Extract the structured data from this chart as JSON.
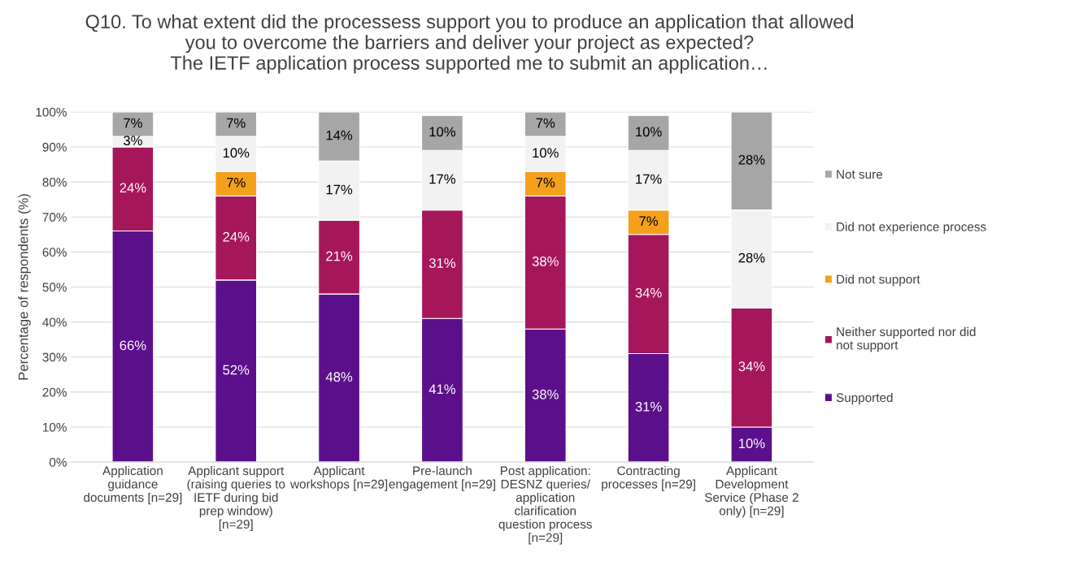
{
  "chart_data": {
    "type": "bar",
    "stacked": true,
    "title": "Q10. To what extent did the processess support you to produce an application that allowed\nyou to overcome the barriers and deliver your project as expected?\nThe IETF application process supported me to submit an application…",
    "ylabel": "Percentage of respondents (%)",
    "categories": [
      "Application\nguidance\ndocuments [n=29]",
      "Applicant support\n(raising queries to\nIETF during bid\nprep window)\n[n=29]",
      "Applicant\nworkshops [n=29]",
      "Pre-launch\nengagement [n=29]",
      "Post application:\nDESNZ queries/\napplication\nclarification\nquestion process\n[n=29]",
      "Contracting\nprocesses [n=29]",
      "Applicant\nDevelopment\nService (Phase 2\nonly) [n=29]"
    ],
    "series": [
      {
        "name": "Supported",
        "color": "#5c0f8b",
        "values": [
          66,
          52,
          48,
          41,
          38,
          31,
          10
        ],
        "value_labels": [
          "66%",
          "52%",
          "48%",
          "41%",
          "38%",
          "31%",
          "10%"
        ]
      },
      {
        "name": "Neither supported nor did\nnot support",
        "color": "#a6165a",
        "values": [
          24,
          24,
          21,
          31,
          38,
          34,
          34
        ],
        "value_labels": [
          "24%",
          "24%",
          "21%",
          "31%",
          "38%",
          "34%",
          "34%"
        ]
      },
      {
        "name": "Did not support",
        "color": "#f5a01a",
        "values": [
          null,
          7,
          null,
          null,
          7,
          7,
          null
        ],
        "value_labels": [
          null,
          "7%",
          null,
          null,
          "7%",
          "7%",
          null
        ]
      },
      {
        "name": "Did not experience process",
        "color": "#f2f2f2",
        "values": [
          3,
          10,
          17,
          17,
          10,
          17,
          28
        ],
        "value_labels": [
          "3%",
          "10%",
          "17%",
          "17%",
          "10%",
          "17%",
          "28%"
        ]
      },
      {
        "name": "Not sure",
        "color": "#a6a6a6",
        "values": [
          7,
          7,
          14,
          10,
          7,
          10,
          28
        ],
        "value_labels": [
          "7%",
          "7%",
          "14%",
          "10%",
          "7%",
          "10%",
          "28%"
        ]
      }
    ],
    "ylim": [
      0,
      100
    ],
    "yticks": [
      {
        "value": 0,
        "label": "0%"
      },
      {
        "value": 10,
        "label": "10%"
      },
      {
        "value": 20,
        "label": "20%"
      },
      {
        "value": 30,
        "label": "30%"
      },
      {
        "value": 40,
        "label": "40%"
      },
      {
        "value": 50,
        "label": "50%"
      },
      {
        "value": 60,
        "label": "60%"
      },
      {
        "value": 70,
        "label": "70%"
      },
      {
        "value": 80,
        "label": "80%"
      },
      {
        "value": 90,
        "label": "90%"
      },
      {
        "value": 100,
        "label": "100%"
      }
    ],
    "grid": "y",
    "legend": "right"
  }
}
